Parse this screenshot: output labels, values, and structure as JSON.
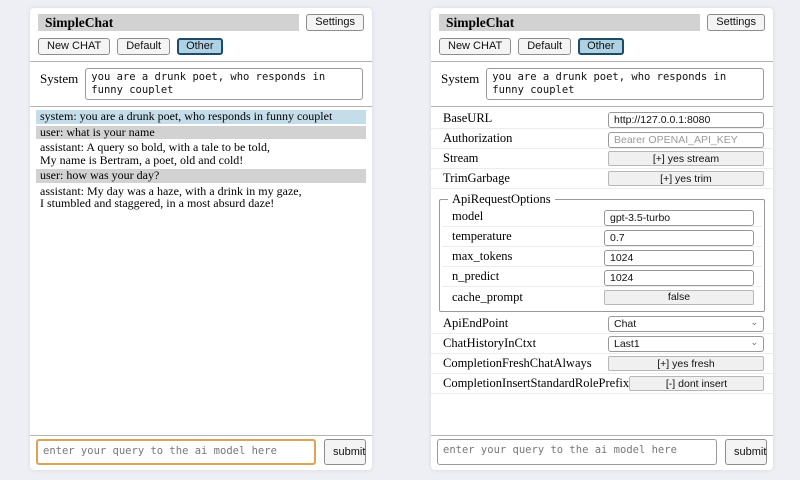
{
  "app": {
    "title": "SimpleChat",
    "settings_button_label": "Settings"
  },
  "toolbar": {
    "new_chat_label": "New CHAT",
    "sessions": [
      "Default",
      "Other"
    ],
    "active_session": "Other"
  },
  "system_prompt": {
    "label": "System",
    "value": "you are a drunk poet, who responds in funny couplet"
  },
  "chat": {
    "messages": [
      {
        "role": "system",
        "text": "system: you are a drunk poet, who responds in funny couplet"
      },
      {
        "role": "user",
        "text": "user: what is your name"
      },
      {
        "role": "assistant",
        "text": "assistant: A query so bold, with a tale to be told,\nMy name is Bertram, a poet, old and cold!"
      },
      {
        "role": "user",
        "text": "user: how was your day?"
      },
      {
        "role": "assistant",
        "text": "assistant: My day was a haze, with a drink in my gaze,\nI stumbled and staggered, in a most absurd daze!"
      }
    ]
  },
  "query": {
    "placeholder": "enter your query to the ai model here",
    "submit_label": "submit"
  },
  "settings": {
    "rows": [
      {
        "label": "BaseURL",
        "type": "input",
        "value": "http://127.0.0.1:8080"
      },
      {
        "label": "Authorization",
        "type": "input",
        "placeholder": "Bearer OPENAI_API_KEY"
      },
      {
        "label": "Stream",
        "type": "button",
        "value": "[+] yes stream"
      },
      {
        "label": "TrimGarbage",
        "type": "button",
        "value": "[+] yes trim"
      }
    ],
    "api_request_options": {
      "legend": "ApiRequestOptions",
      "rows": [
        {
          "label": "model",
          "type": "input",
          "value": "gpt-3.5-turbo"
        },
        {
          "label": "temperature",
          "type": "input",
          "value": "0.7"
        },
        {
          "label": "max_tokens",
          "type": "input",
          "value": "1024"
        },
        {
          "label": "n_predict",
          "type": "input",
          "value": "1024"
        },
        {
          "label": "cache_prompt",
          "type": "button",
          "value": "false"
        }
      ]
    },
    "rows_after": [
      {
        "label": "ApiEndPoint",
        "type": "select",
        "value": "Chat"
      },
      {
        "label": "ChatHistoryInCtxt",
        "type": "select",
        "value": "Last1"
      },
      {
        "label": "CompletionFreshChatAlways",
        "type": "button",
        "value": "[+] yes fresh"
      },
      {
        "label": "CompletionInsertStandardRolePrefix",
        "type": "button",
        "value": "[-] dont insert"
      }
    ]
  },
  "colors": {
    "page_background": "#edeff4",
    "titlebar": "#d2d2d2",
    "system_message": "#c5dde9",
    "user_message": "#d2d2d2",
    "active_button_background": "#aed2e3",
    "active_button_border": "#1d4a66",
    "focused_textarea_border": "#d9a455"
  }
}
